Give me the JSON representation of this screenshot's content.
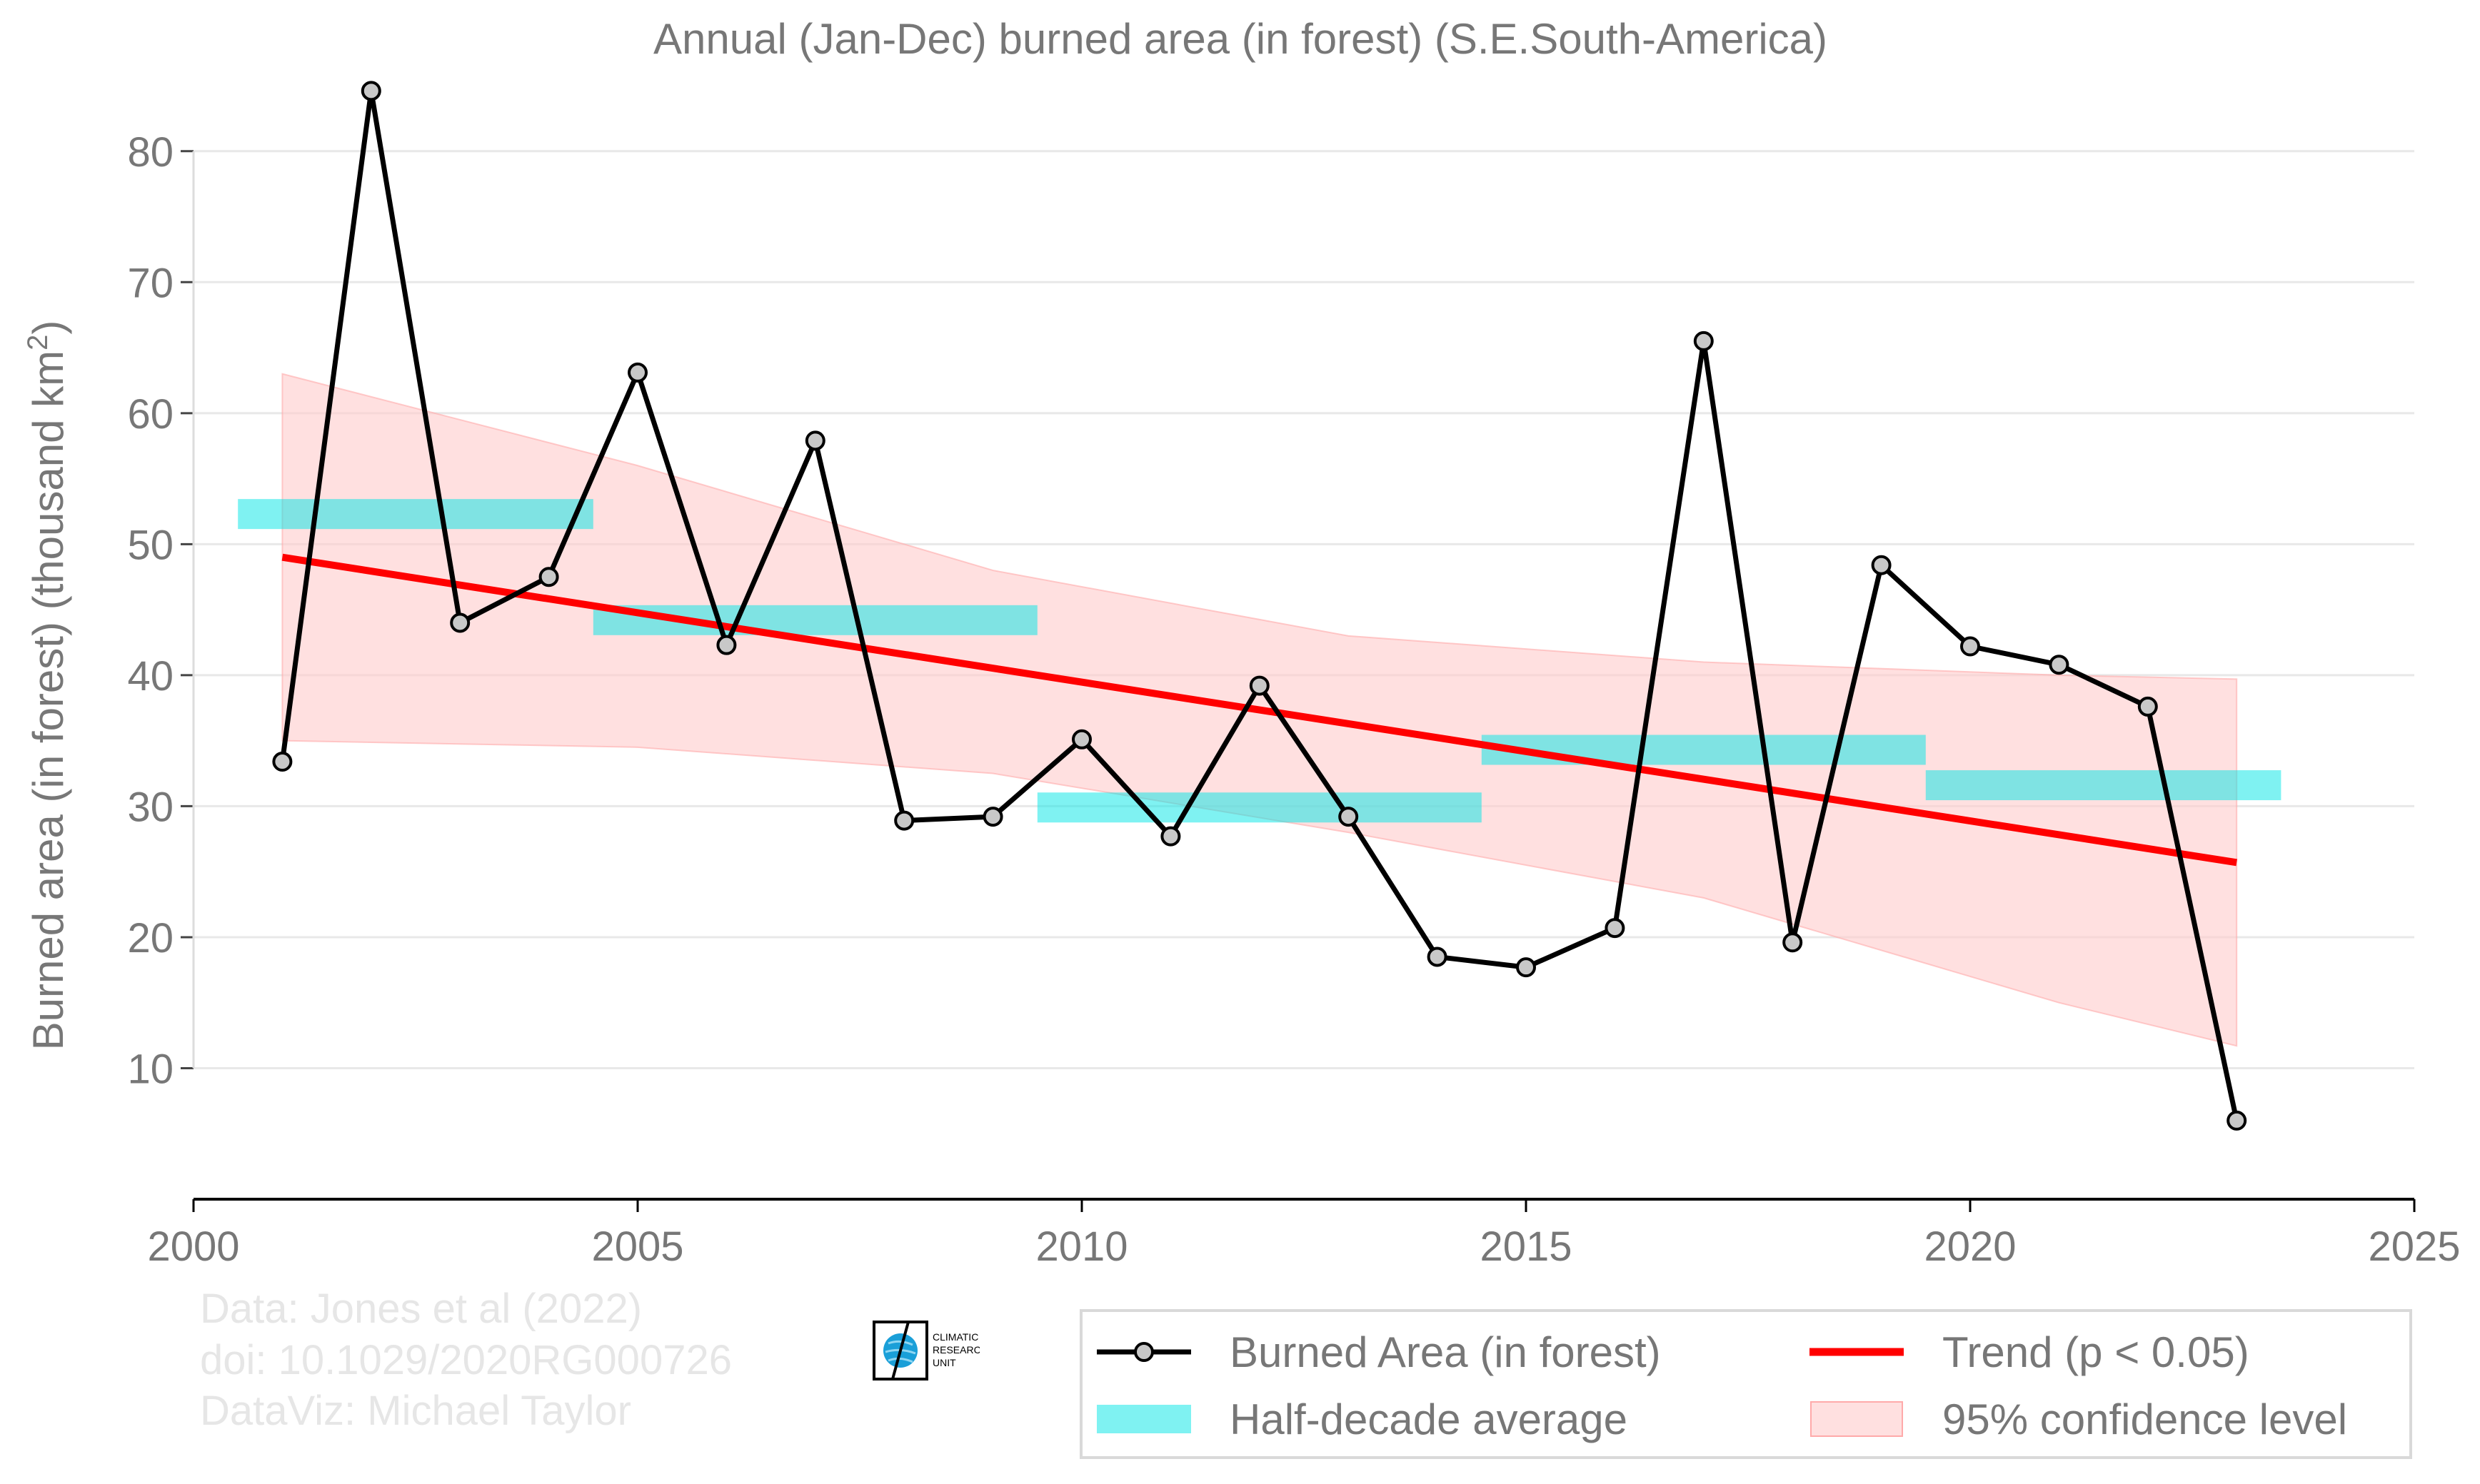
{
  "chart_data": {
    "type": "line",
    "title": "Annual (Jan-Dec) burned area (in forest) (S.E.South-America)",
    "ylabel": "Burned area (in forest) (thousand km",
    "ylabel_superscript": "2",
    "ylabel_suffix": ")",
    "xlabel": "",
    "xlim": [
      2000,
      2025
    ],
    "ylim": [
      0,
      85
    ],
    "xticks": [
      2000,
      2005,
      2010,
      2015,
      2020,
      2025
    ],
    "yticks": [
      10,
      20,
      30,
      40,
      50,
      60,
      70,
      80
    ],
    "grid": "horizontal",
    "legend_position": "bottom-right",
    "series": [
      {
        "name": "Burned Area (in forest)",
        "kind": "line-markers",
        "color": "#000000",
        "marker_fill": "#c8c8c8",
        "x": [
          2001,
          2002,
          2003,
          2004,
          2005,
          2006,
          2007,
          2008,
          2009,
          2010,
          2011,
          2012,
          2013,
          2014,
          2015,
          2016,
          2017,
          2018,
          2019,
          2020,
          2021,
          2022,
          2023
        ],
        "y": [
          33.4,
          84.6,
          44.0,
          47.5,
          63.1,
          42.3,
          57.9,
          28.9,
          29.2,
          35.1,
          27.7,
          39.2,
          29.2,
          18.5,
          17.7,
          20.7,
          65.5,
          19.6,
          48.4,
          42.2,
          40.8,
          37.6,
          6.0
        ]
      },
      {
        "name": "Half-decade average",
        "kind": "bars",
        "color": "#00e5e5",
        "segments": [
          {
            "x0": 2000.5,
            "x1": 2004.5,
            "y": 52.3
          },
          {
            "x0": 2004.5,
            "x1": 2009.5,
            "y": 44.2
          },
          {
            "x0": 2009.5,
            "x1": 2014.5,
            "y": 29.9
          },
          {
            "x0": 2014.5,
            "x1": 2019.5,
            "y": 34.3
          },
          {
            "x0": 2019.5,
            "x1": 2023.5,
            "y": 31.6
          }
        ]
      },
      {
        "name": "Trend (p < 0.05)",
        "kind": "trend",
        "color": "#ff0000",
        "x": [
          2001,
          2023
        ],
        "y": [
          49.0,
          25.7
        ]
      },
      {
        "name": "95% confidence level",
        "kind": "band",
        "color": "#ffcccc",
        "x": [
          2001,
          2005,
          2009,
          2013,
          2017,
          2021,
          2023
        ],
        "upper": [
          63.0,
          56.0,
          48.0,
          43.0,
          41.0,
          40.0,
          39.7
        ],
        "lower": [
          35.0,
          34.5,
          32.5,
          28.0,
          23.0,
          15.0,
          11.7
        ]
      }
    ]
  },
  "credits": {
    "line1": "Data: Jones et al (2022)",
    "line2": "doi: 10.1029/2020RG000726",
    "line3": "DataViz: Michael Taylor",
    "logo_text": "CLIMATIC RESEARCH UNIT",
    "logo_line1": "CLIMATIC",
    "logo_line2": "RESEARCH",
    "logo_line3": "UNIT"
  },
  "colors": {
    "text": "#777777",
    "grid": "#e8e8e8",
    "credit_text": "#e6e6e6"
  }
}
